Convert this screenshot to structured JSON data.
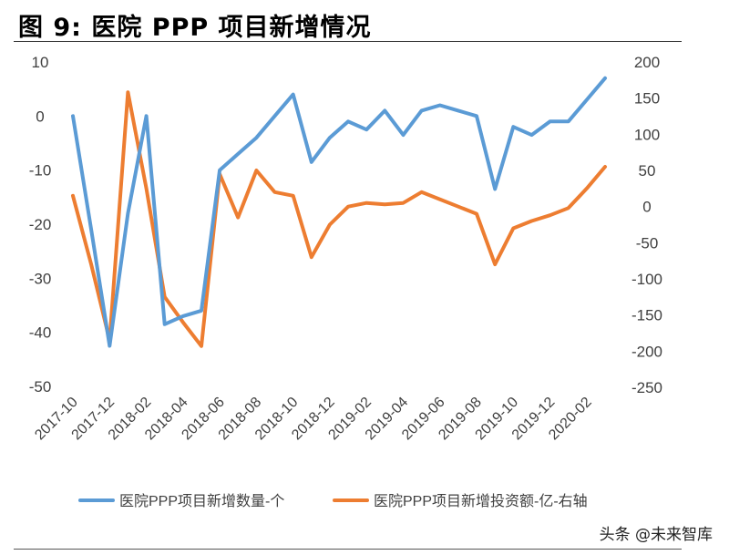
{
  "figure": {
    "title": "图 9:  医院 PPP 项目新增情况",
    "watermark": "头条 @未来智库"
  },
  "chart_data": {
    "type": "line",
    "title": "医院 PPP 项目新增情况",
    "x": [
      "2017-10",
      "2017-11",
      "2017-12",
      "2018-01",
      "2018-02",
      "2018-03",
      "2018-04",
      "2018-05",
      "2018-06",
      "2018-07",
      "2018-08",
      "2018-09",
      "2018-10",
      "2018-11",
      "2018-12",
      "2019-01",
      "2019-02",
      "2019-03",
      "2019-04",
      "2019-05",
      "2019-06",
      "2019-07",
      "2019-08",
      "2019-09",
      "2019-10",
      "2019-11",
      "2019-12",
      "2020-01",
      "2020-02",
      "2020-03"
    ],
    "xtick_labels": [
      "2017-10",
      "2017-12",
      "2018-02",
      "2018-04",
      "2018-06",
      "2018-08",
      "2018-10",
      "2018-12",
      "2019-02",
      "2019-04",
      "2019-06",
      "2019-08",
      "2019-10",
      "2019-12",
      "2020-02"
    ],
    "series": [
      {
        "name": "医院PPP项目新增数量-个",
        "axis": "left",
        "color": "#5B9BD5",
        "values": [
          0,
          -21,
          -42.5,
          -18,
          0,
          -38.5,
          -37,
          -36,
          -10,
          -7,
          -4,
          0,
          4,
          -8.5,
          -4,
          -1,
          -2.5,
          1,
          -3.5,
          1,
          2,
          1,
          0,
          -13.5,
          -2,
          -3.5,
          -1,
          -1,
          3,
          7
        ]
      },
      {
        "name": "医院PPP项目新增投资额-亿-右轴",
        "axis": "right",
        "color": "#ED7D31",
        "values": [
          15,
          -80,
          -185,
          158,
          25,
          -125,
          -160,
          -193,
          45,
          -15,
          50,
          20,
          15,
          -70,
          -25,
          0,
          5,
          3,
          5,
          20,
          10,
          0,
          -10,
          -80,
          -30,
          -20,
          -12,
          -2,
          25,
          55
        ]
      }
    ],
    "left_axis": {
      "min": -50,
      "max": 10,
      "ticks": [
        "10",
        "0",
        "-10",
        "-20",
        "-30",
        "-40",
        "-50"
      ]
    },
    "right_axis": {
      "min": -250,
      "max": 200,
      "ticks": [
        "200",
        "150",
        "100",
        "50",
        "0",
        "-50",
        "-100",
        "-150",
        "-200",
        "-250"
      ]
    },
    "legend": [
      "医院PPP项目新增数量-个",
      "医院PPP项目新增投资额-亿-右轴"
    ],
    "legend_position": "bottom",
    "grid": false
  }
}
